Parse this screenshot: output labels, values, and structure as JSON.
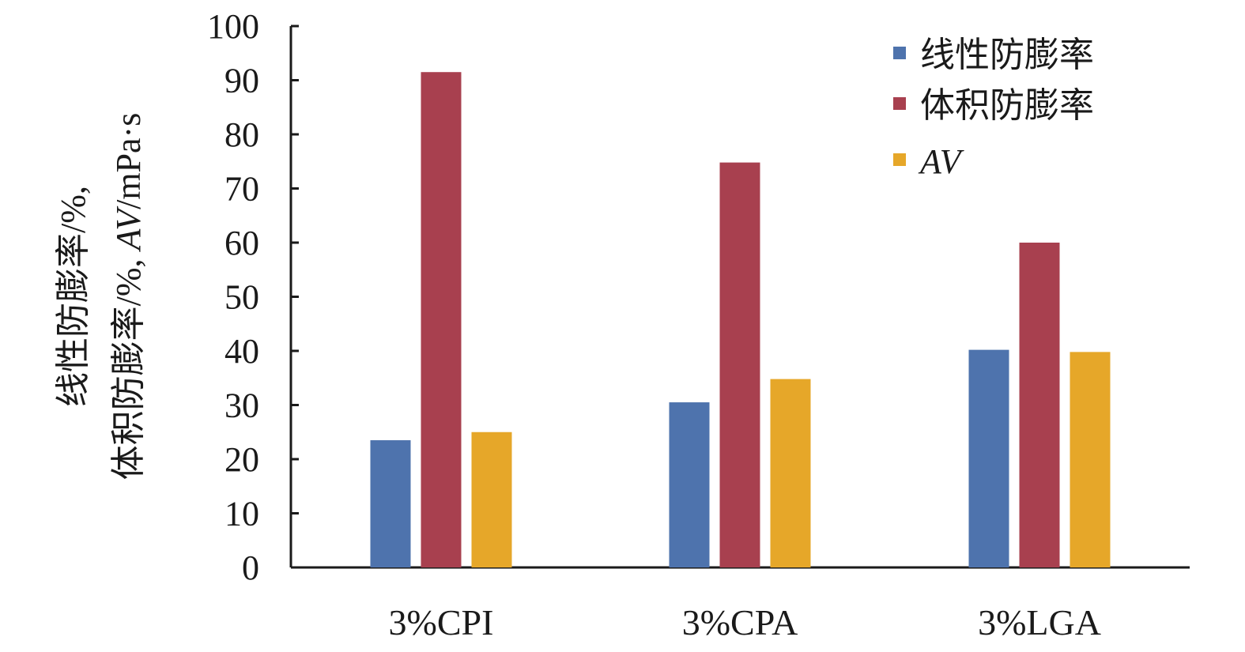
{
  "chart_data": {
    "type": "bar",
    "categories": [
      "3%CPI",
      "3%CPA",
      "3%LGA"
    ],
    "series": [
      {
        "name": "线性防膨率",
        "values": [
          23.5,
          30.5,
          40.2
        ],
        "color": "#4e73ad"
      },
      {
        "name": "体积防膨率",
        "values": [
          91.5,
          74.8,
          60.0
        ],
        "color": "#a8404f"
      },
      {
        "name": "AV",
        "values": [
          25.0,
          34.8,
          39.8
        ],
        "color": "#e6a729"
      }
    ],
    "title": "",
    "xlabel": "",
    "ylabel": {
      "line1": "线性防膨率/%,",
      "line2_a": "体积防膨率/%, ",
      "line2_b": "AV",
      "line2_c": "/mPa·s"
    },
    "ylim": [
      0,
      100
    ],
    "yticks": [
      0,
      10,
      20,
      30,
      40,
      50,
      60,
      70,
      80,
      90,
      100
    ],
    "grid": false,
    "legend_position": "top-right"
  }
}
